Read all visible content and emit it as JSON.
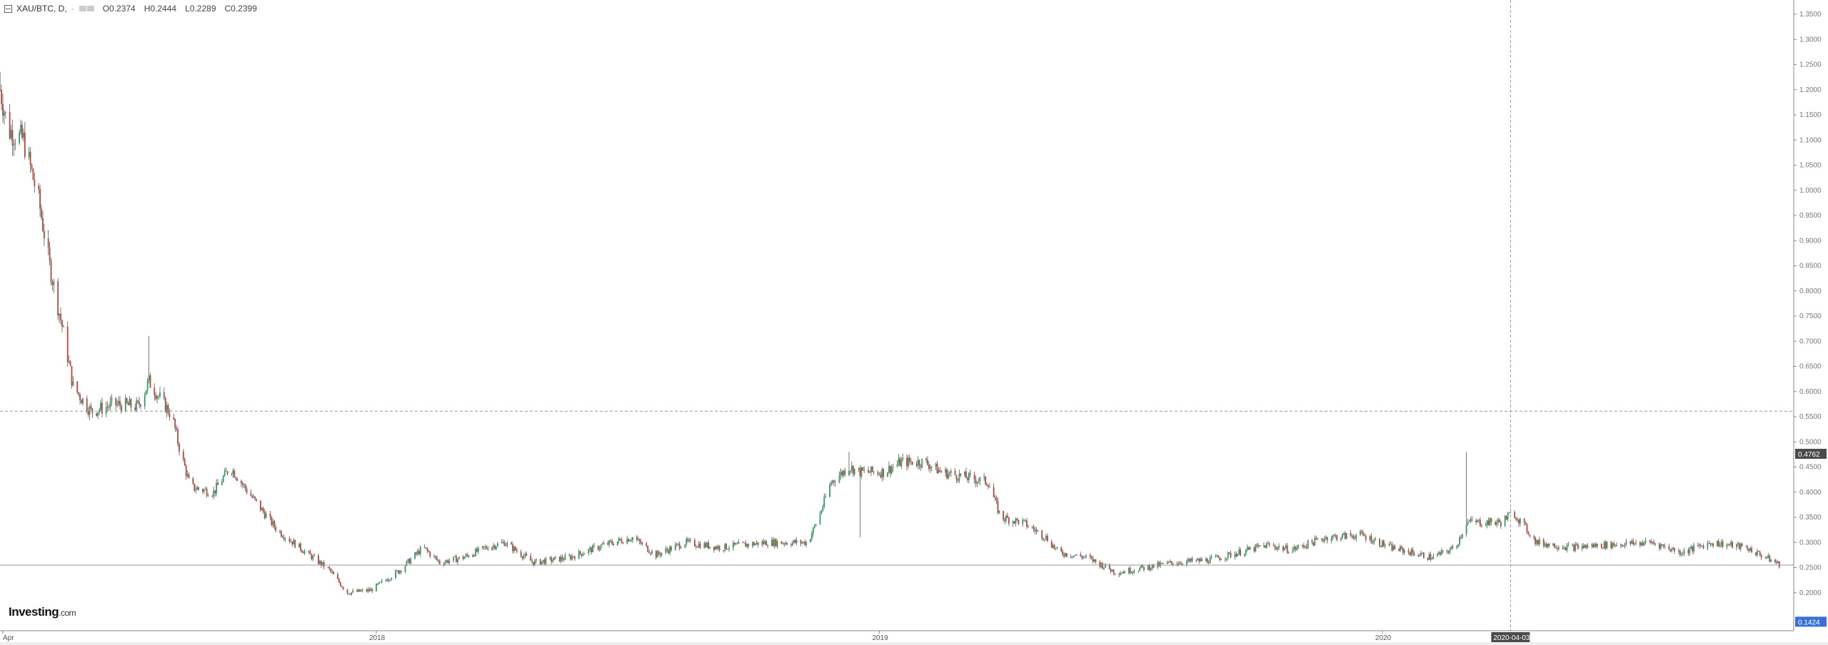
{
  "legend": {
    "symbol": "XAU/BTC, D,",
    "dropdown": "-",
    "open": "O0.2374",
    "high": "H0.2444",
    "low": "L0.2289",
    "close": "C0.2399"
  },
  "logo": {
    "brand": "Investing",
    "suffix": ".com"
  },
  "colors": {
    "up": "#2f9e68",
    "down": "#b5473f",
    "wick": "#555555",
    "grid": "#cccccc",
    "price_label": "#4a4a4a",
    "blue_label": "#3b6fd8"
  },
  "chart_data": {
    "type": "candlestick",
    "title": "XAU/BTC, D",
    "ylim": [
      0.1424,
      1.37
    ],
    "y_ticks": [
      "1.3500",
      "1.3000",
      "1.2500",
      "1.2000",
      "1.1500",
      "1.1000",
      "1.0500",
      "1.0000",
      "0.9500",
      "0.9000",
      "0.8500",
      "0.8000",
      "0.7500",
      "0.7000",
      "0.6500",
      "0.6000",
      "0.5500",
      "0.5000",
      "0.4500",
      "0.4000",
      "0.3500",
      "0.3000",
      "0.2500",
      "0.2000"
    ],
    "x_ticks": [
      {
        "label": "Apr",
        "date": "2017-04-05"
      },
      {
        "label": "2018",
        "date": "2018-01-01"
      },
      {
        "label": "2019",
        "date": "2019-01-01"
      },
      {
        "label": "2020",
        "date": "2020-01-01"
      }
    ],
    "crosshair": {
      "date_label": "2020-04-03",
      "date": "2020-04-03",
      "price": 0.561
    },
    "price_labels": {
      "dark": "0.4762",
      "blue": "0.1424"
    },
    "last_price_line": 0.255,
    "closes": [
      {
        "d": "2017-04-03",
        "c": 1.2,
        "h": 1.235
      },
      {
        "d": "2017-04-09",
        "c": 1.12
      },
      {
        "d": "2017-04-20",
        "c": 1.1
      },
      {
        "d": "2017-05-01",
        "c": 0.98
      },
      {
        "d": "2017-05-09",
        "c": 0.85
      },
      {
        "d": "2017-05-18",
        "c": 0.73
      },
      {
        "d": "2017-05-26",
        "c": 0.61
      },
      {
        "d": "2017-06-08",
        "c": 0.56
      },
      {
        "d": "2017-06-25",
        "c": 0.575
      },
      {
        "d": "2017-07-12",
        "c": 0.57
      },
      {
        "d": "2017-07-20",
        "c": 0.62,
        "h": 0.71
      },
      {
        "d": "2017-08-06",
        "c": 0.55
      },
      {
        "d": "2017-08-10",
        "c": 0.5
      },
      {
        "d": "2017-08-19",
        "c": 0.41
      },
      {
        "d": "2017-09-05",
        "c": 0.4
      },
      {
        "d": "2017-09-17",
        "c": 0.45,
        "h": 0.52
      },
      {
        "d": "2017-09-30",
        "c": 0.4
      },
      {
        "d": "2017-10-21",
        "c": 0.325
      },
      {
        "d": "2017-11-11",
        "c": 0.28
      },
      {
        "d": "2017-11-28",
        "c": 0.245
      },
      {
        "d": "2017-12-11",
        "c": 0.2
      },
      {
        "d": "2017-12-28",
        "c": 0.205
      },
      {
        "d": "2018-01-18",
        "c": 0.245
      },
      {
        "d": "2018-02-04",
        "c": 0.29,
        "h": 0.33
      },
      {
        "d": "2018-02-16",
        "c": 0.26
      },
      {
        "d": "2018-03-05",
        "c": 0.27
      },
      {
        "d": "2018-03-22",
        "c": 0.29
      },
      {
        "d": "2018-04-04",
        "c": 0.3
      },
      {
        "d": "2018-04-25",
        "c": 0.26
      },
      {
        "d": "2018-05-21",
        "c": 0.27
      },
      {
        "d": "2018-06-15",
        "c": 0.295
      },
      {
        "d": "2018-07-06",
        "c": 0.31
      },
      {
        "d": "2018-07-23",
        "c": 0.275
      },
      {
        "d": "2018-08-13",
        "c": 0.3
      },
      {
        "d": "2018-09-08",
        "c": 0.29
      },
      {
        "d": "2018-10-11",
        "c": 0.3
      },
      {
        "d": "2018-11-10",
        "c": 0.3
      },
      {
        "d": "2018-11-18",
        "c": 0.35
      },
      {
        "d": "2018-11-27",
        "c": 0.42
      },
      {
        "d": "2018-12-10",
        "c": 0.45,
        "h": 0.48
      },
      {
        "d": "2018-12-18",
        "c": 0.44,
        "l": 0.31
      },
      {
        "d": "2019-01-04",
        "c": 0.44
      },
      {
        "d": "2019-01-17",
        "c": 0.46
      },
      {
        "d": "2019-02-03",
        "c": 0.46
      },
      {
        "d": "2019-02-15",
        "c": 0.44
      },
      {
        "d": "2019-03-04",
        "c": 0.43
      },
      {
        "d": "2019-03-21",
        "c": 0.42
      },
      {
        "d": "2019-03-30",
        "c": 0.35
      },
      {
        "d": "2019-04-15",
        "c": 0.34
      },
      {
        "d": "2019-05-02",
        "c": 0.31
      },
      {
        "d": "2019-05-11",
        "c": 0.28
      },
      {
        "d": "2019-06-01",
        "c": 0.27
      },
      {
        "d": "2019-06-22",
        "c": 0.24
      },
      {
        "d": "2019-07-13",
        "c": 0.25
      },
      {
        "d": "2019-08-03",
        "c": 0.26
      },
      {
        "d": "2019-08-29",
        "c": 0.265
      },
      {
        "d": "2019-09-19",
        "c": 0.28
      },
      {
        "d": "2019-10-10",
        "c": 0.295
      },
      {
        "d": "2019-10-27",
        "c": 0.285
      },
      {
        "d": "2019-11-21",
        "c": 0.31
      },
      {
        "d": "2019-12-17",
        "c": 0.315
      },
      {
        "d": "2020-01-07",
        "c": 0.29
      },
      {
        "d": "2020-02-06",
        "c": 0.27
      },
      {
        "d": "2020-02-23",
        "c": 0.29
      },
      {
        "d": "2020-03-02",
        "c": 0.34,
        "h": 0.48
      },
      {
        "d": "2020-03-15",
        "c": 0.34
      },
      {
        "d": "2020-03-27",
        "c": 0.34
      },
      {
        "d": "2020-04-05",
        "c": 0.36
      },
      {
        "d": "2020-04-22",
        "c": 0.3
      },
      {
        "d": "2020-05-17",
        "c": 0.29
      },
      {
        "d": "2020-06-11",
        "c": 0.295
      },
      {
        "d": "2020-07-15",
        "c": 0.3
      },
      {
        "d": "2020-08-05",
        "c": 0.28
      },
      {
        "d": "2020-08-27",
        "c": 0.3
      },
      {
        "d": "2020-09-21",
        "c": 0.29
      },
      {
        "d": "2020-10-16",
        "c": 0.255
      }
    ]
  }
}
